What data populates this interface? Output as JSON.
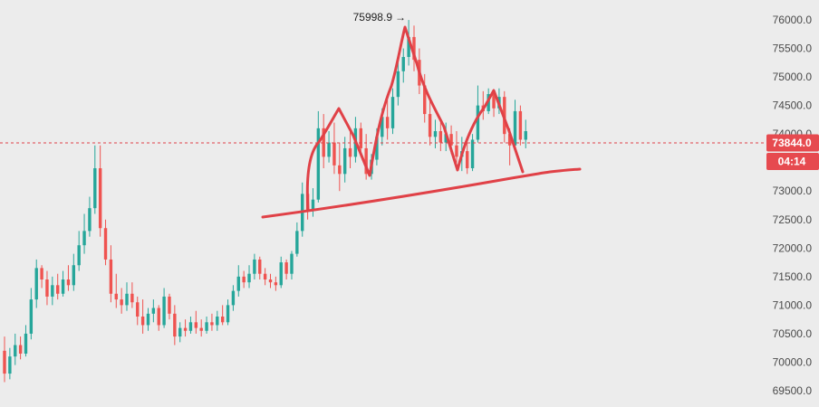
{
  "chart_data": {
    "type": "candlestick",
    "title": "",
    "xlabel": "",
    "ylabel": "",
    "ylim": [
      69400,
      76250
    ],
    "grid": false,
    "y_ticks": [
      "76000.0",
      "75500.0",
      "75000.0",
      "74500.0",
      "74000.0",
      "73500.0",
      "73000.0",
      "72500.0",
      "72000.0",
      "71500.0",
      "71000.0",
      "70500.0",
      "70000.0",
      "69500.0"
    ],
    "y_tick_values": [
      76000,
      75500,
      75000,
      74500,
      74000,
      73500,
      73000,
      72500,
      72000,
      71500,
      71000,
      70500,
      70000,
      69500
    ],
    "current_price": 73844.0,
    "current_price_label": "73844.0",
    "countdown_label": "04:14",
    "peak_value": 75998.9,
    "peak_label": "75998.9",
    "colors": {
      "up": "#26a69a",
      "down": "#ef5350",
      "annotation": "#e04147",
      "badge": "#e64a4f"
    },
    "candles": [
      [
        70200,
        70450,
        69650,
        69800
      ],
      [
        69800,
        70250,
        69700,
        70100
      ],
      [
        70100,
        70500,
        69950,
        70300
      ],
      [
        70300,
        70450,
        70050,
        70150
      ],
      [
        70150,
        70650,
        70100,
        70500
      ],
      [
        70500,
        71300,
        70400,
        71100
      ],
      [
        71100,
        71800,
        70950,
        71650
      ],
      [
        71650,
        71700,
        71300,
        71450
      ],
      [
        71450,
        71600,
        71000,
        71150
      ],
      [
        71150,
        71500,
        71000,
        71350
      ],
      [
        71350,
        71550,
        71100,
        71200
      ],
      [
        71200,
        71600,
        71150,
        71450
      ],
      [
        71450,
        71700,
        71250,
        71350
      ],
      [
        71350,
        71900,
        71250,
        71700
      ],
      [
        71700,
        72300,
        71600,
        72050
      ],
      [
        72050,
        72600,
        71900,
        72300
      ],
      [
        72300,
        72900,
        72200,
        72700
      ],
      [
        72700,
        73800,
        72600,
        73400
      ],
      [
        73400,
        73800,
        72200,
        72350
      ],
      [
        72350,
        72500,
        71700,
        71800
      ],
      [
        71800,
        72050,
        71050,
        71200
      ],
      [
        71200,
        71550,
        70950,
        71100
      ],
      [
        71100,
        71300,
        70850,
        71000
      ],
      [
        71000,
        71400,
        70900,
        71200
      ],
      [
        71200,
        71400,
        70950,
        71050
      ],
      [
        71050,
        71150,
        70650,
        70800
      ],
      [
        70800,
        71100,
        70500,
        70650
      ],
      [
        70650,
        70950,
        70550,
        70850
      ],
      [
        70850,
        71100,
        70700,
        70950
      ],
      [
        70950,
        71000,
        70550,
        70650
      ],
      [
        70650,
        71300,
        70600,
        71150
      ],
      [
        71150,
        71200,
        70750,
        70850
      ],
      [
        70850,
        71000,
        70300,
        70450
      ],
      [
        70450,
        70700,
        70350,
        70600
      ],
      [
        70600,
        70750,
        70450,
        70550
      ],
      [
        70550,
        70800,
        70500,
        70700
      ],
      [
        70700,
        70900,
        70500,
        70600
      ],
      [
        70600,
        70750,
        70450,
        70550
      ],
      [
        70550,
        70800,
        70500,
        70700
      ],
      [
        70700,
        70850,
        70550,
        70650
      ],
      [
        70650,
        70900,
        70550,
        70800
      ],
      [
        70800,
        71000,
        70650,
        70700
      ],
      [
        70700,
        71100,
        70650,
        71000
      ],
      [
        71000,
        71350,
        70900,
        71250
      ],
      [
        71250,
        71700,
        71150,
        71500
      ],
      [
        71500,
        71600,
        71300,
        71400
      ],
      [
        71400,
        71700,
        71300,
        71550
      ],
      [
        71550,
        71900,
        71450,
        71800
      ],
      [
        71800,
        71850,
        71450,
        71550
      ],
      [
        71550,
        71650,
        71350,
        71450
      ],
      [
        71450,
        71550,
        71300,
        71400
      ],
      [
        71400,
        71500,
        71250,
        71350
      ],
      [
        71350,
        71850,
        71300,
        71750
      ],
      [
        71750,
        71800,
        71450,
        71550
      ],
      [
        71550,
        71950,
        71450,
        71900
      ],
      [
        71900,
        72450,
        71850,
        72300
      ],
      [
        72300,
        73150,
        72200,
        72950
      ],
      [
        72950,
        73200,
        72500,
        72650
      ],
      [
        72650,
        73050,
        72550,
        72850
      ],
      [
        72850,
        74400,
        72800,
        74100
      ],
      [
        74100,
        74350,
        73400,
        73600
      ],
      [
        73600,
        74050,
        73500,
        73850
      ],
      [
        73850,
        74200,
        73300,
        73450
      ],
      [
        73450,
        73850,
        73000,
        73300
      ],
      [
        73300,
        73950,
        73150,
        73750
      ],
      [
        73750,
        74050,
        73400,
        73600
      ],
      [
        73600,
        74300,
        73500,
        74100
      ],
      [
        74100,
        74200,
        73600,
        73750
      ],
      [
        73750,
        74000,
        73200,
        73300
      ],
      [
        73300,
        73650,
        73200,
        73550
      ],
      [
        73550,
        74100,
        73450,
        73950
      ],
      [
        73950,
        74450,
        73800,
        74300
      ],
      [
        74300,
        74600,
        73900,
        74100
      ],
      [
        74100,
        74800,
        74000,
        74650
      ],
      [
        74650,
        75250,
        74500,
        75100
      ],
      [
        75100,
        75500,
        74900,
        75350
      ],
      [
        75350,
        75999,
        75200,
        75700
      ],
      [
        75700,
        75900,
        75100,
        75300
      ],
      [
        75300,
        75500,
        74700,
        74850
      ],
      [
        74850,
        75050,
        74200,
        74350
      ],
      [
        74350,
        74600,
        73800,
        73950
      ],
      [
        73950,
        74250,
        73750,
        74050
      ],
      [
        74050,
        74200,
        73700,
        73850
      ],
      [
        73850,
        74200,
        73700,
        74000
      ],
      [
        74000,
        74150,
        73650,
        73800
      ],
      [
        73800,
        74050,
        73500,
        73600
      ],
      [
        73600,
        73950,
        73350,
        73700
      ],
      [
        73700,
        73850,
        73300,
        73400
      ],
      [
        73400,
        74000,
        73350,
        73900
      ],
      [
        73900,
        74850,
        73850,
        74500
      ],
      [
        74500,
        74750,
        74250,
        74400
      ],
      [
        74400,
        74800,
        74350,
        74700
      ],
      [
        74700,
        74750,
        74300,
        74450
      ],
      [
        74450,
        74800,
        74350,
        74650
      ],
      [
        74650,
        74750,
        73850,
        74000
      ],
      [
        74000,
        74100,
        73450,
        73800
      ],
      [
        73800,
        74600,
        73700,
        74400
      ],
      [
        74400,
        74500,
        73800,
        73900
      ],
      [
        73900,
        74250,
        73750,
        74050
      ]
    ]
  }
}
